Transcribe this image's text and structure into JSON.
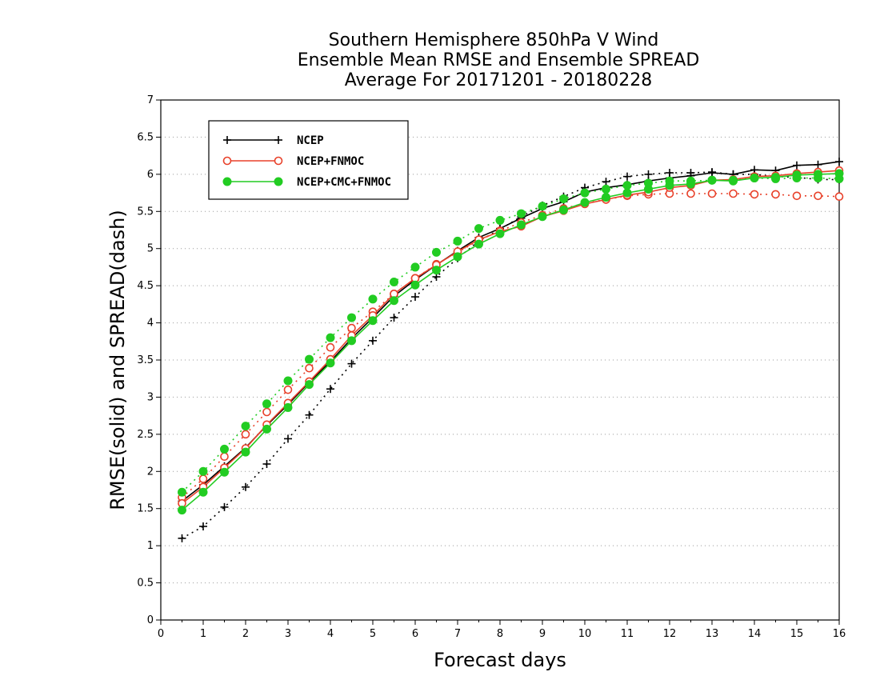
{
  "chart_data": {
    "type": "line",
    "title": [
      "Southern Hemisphere 850hPa V Wind",
      "Ensemble Mean RMSE and Ensemble SPREAD",
      "Average For 20171201 - 20180228"
    ],
    "xlabel": "Forecast days",
    "ylabel": "RMSE(solid) and SPREAD(dash)",
    "xlim": [
      0,
      16
    ],
    "ylim": [
      0,
      7
    ],
    "xticks": [
      0,
      1,
      2,
      3,
      4,
      5,
      6,
      7,
      8,
      9,
      10,
      11,
      12,
      13,
      14,
      15,
      16
    ],
    "yticks": [
      0,
      0.5,
      1,
      1.5,
      2,
      2.5,
      3,
      3.5,
      4,
      4.5,
      5,
      5.5,
      6,
      6.5,
      7
    ],
    "ytick_labels": [
      "0",
      "0.5",
      "1",
      "1.5",
      "2",
      "2.5",
      "3",
      "3.5",
      "4",
      "4.5",
      "5",
      "5.5",
      "6",
      "6.5",
      "7"
    ],
    "grid": "horizontal dotted",
    "legend_position": "top-left",
    "x": [
      0.5,
      1,
      1.5,
      2,
      2.5,
      3,
      3.5,
      4,
      4.5,
      5,
      5.5,
      6,
      6.5,
      7,
      7.5,
      8,
      8.5,
      9,
      9.5,
      10,
      10.5,
      11,
      11.5,
      12,
      12.5,
      13,
      13.5,
      14,
      14.5,
      15,
      15.5,
      16
    ],
    "series": [
      {
        "name": "NCEP",
        "color": "#000000",
        "marker": "plus",
        "rmse": [
          1.6,
          1.82,
          2.07,
          2.32,
          2.62,
          2.9,
          3.2,
          3.48,
          3.79,
          4.07,
          4.36,
          4.58,
          4.78,
          4.97,
          5.15,
          5.27,
          5.41,
          5.54,
          5.63,
          5.76,
          5.82,
          5.86,
          5.91,
          5.95,
          5.98,
          6.02,
          6.0,
          6.06,
          6.05,
          6.12,
          6.13,
          6.17
        ],
        "spread": [
          1.1,
          1.26,
          1.52,
          1.79,
          2.1,
          2.44,
          2.76,
          3.11,
          3.45,
          3.76,
          4.07,
          4.35,
          4.62,
          4.87,
          5.1,
          5.26,
          5.43,
          5.58,
          5.7,
          5.82,
          5.9,
          5.97,
          6.0,
          6.02,
          6.02,
          6.03,
          6.0,
          6.0,
          5.97,
          5.96,
          5.93,
          5.93
        ]
      },
      {
        "name": "NCEP+FNMOC",
        "color": "#e8412a",
        "marker": "open-circle",
        "rmse": [
          1.57,
          1.79,
          2.05,
          2.31,
          2.63,
          2.92,
          3.21,
          3.51,
          3.83,
          4.1,
          4.39,
          4.6,
          4.78,
          4.96,
          5.12,
          5.23,
          5.3,
          5.43,
          5.51,
          5.6,
          5.66,
          5.72,
          5.76,
          5.82,
          5.85,
          5.92,
          5.93,
          5.97,
          5.98,
          6.01,
          6.03,
          6.05
        ],
        "spread": [
          1.65,
          1.9,
          2.2,
          2.5,
          2.8,
          3.1,
          3.39,
          3.67,
          3.93,
          4.15,
          4.39,
          4.6,
          4.79,
          4.95,
          5.11,
          5.24,
          5.35,
          5.45,
          5.54,
          5.61,
          5.66,
          5.71,
          5.73,
          5.74,
          5.74,
          5.74,
          5.74,
          5.73,
          5.73,
          5.71,
          5.71,
          5.7
        ]
      },
      {
        "name": "NCEP+CMC+FNMOC",
        "color": "#22cc22",
        "marker": "filled-circle",
        "rmse": [
          1.48,
          1.72,
          1.99,
          2.26,
          2.57,
          2.86,
          3.17,
          3.46,
          3.76,
          4.03,
          4.3,
          4.51,
          4.71,
          4.89,
          5.06,
          5.2,
          5.32,
          5.43,
          5.52,
          5.62,
          5.69,
          5.75,
          5.8,
          5.85,
          5.87,
          5.92,
          5.91,
          5.95,
          5.96,
          5.99,
          6.0,
          6.01
        ],
        "spread": [
          1.72,
          2.0,
          2.3,
          2.61,
          2.91,
          3.22,
          3.51,
          3.8,
          4.07,
          4.32,
          4.55,
          4.75,
          4.95,
          5.1,
          5.27,
          5.38,
          5.47,
          5.57,
          5.67,
          5.75,
          5.8,
          5.85,
          5.88,
          5.91,
          5.91,
          5.92,
          5.92,
          5.95,
          5.94,
          5.95,
          5.95,
          5.94
        ]
      }
    ]
  }
}
